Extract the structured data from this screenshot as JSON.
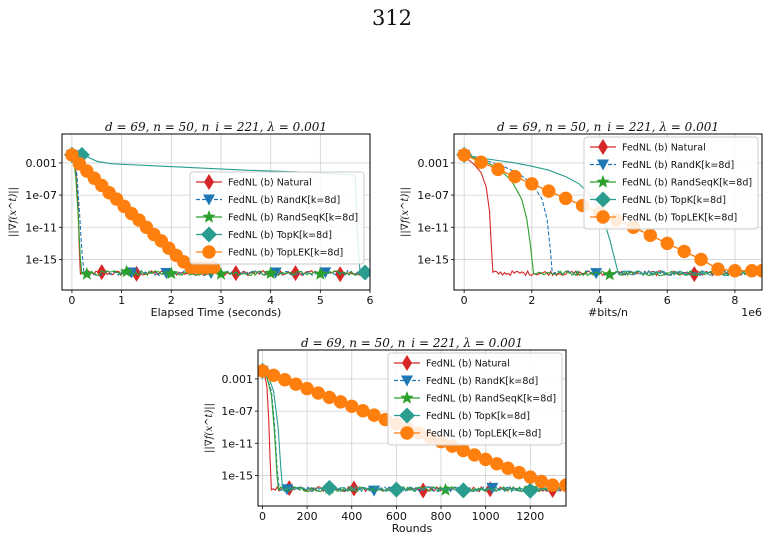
{
  "page": {
    "number": "312"
  },
  "series_styles": [
    {
      "name": "FedNL (b) Natural",
      "color": "#d62728",
      "marker": "diamond",
      "dash": "solid"
    },
    {
      "name": "FedNL (b) RandK[k=8d]",
      "color": "#1f77b4",
      "marker": "triangle-down",
      "dash": "dashed"
    },
    {
      "name": "FedNL (b) RandSeqK[k=8d]",
      "color": "#2ca02c",
      "marker": "star",
      "dash": "solid"
    },
    {
      "name": "FedNL (b) TopK[k=8d]",
      "color": "#2a9d8f",
      "marker": "diamond-large",
      "dash": "solid"
    },
    {
      "name": "FedNL (b) TopLEK[k=8d]",
      "color": "#ff7f0e",
      "marker": "circle",
      "dash": "solid"
    }
  ],
  "chart_data": [
    {
      "id": "time",
      "type": "line",
      "title": "d = 69, n = 50, n_i = 221, λ = 0.001",
      "xlabel": "Elapsed Time (seconds)",
      "ylabel": "||∇f(x^t)||",
      "y_scale": "log",
      "xlim": [
        -0.2,
        6.0
      ],
      "ylim_log10": [
        -18.8,
        0.6
      ],
      "xticks": [
        0,
        1,
        2,
        3,
        4,
        5,
        6
      ],
      "xtick_labels": [
        "0",
        "1",
        "2",
        "3",
        "4",
        "5",
        "6"
      ],
      "x_multiplier_label": "",
      "yticks_log10": [
        -3,
        -7,
        -11,
        -15
      ],
      "ytick_labels": [
        "0.001",
        "1e-07",
        "1e-11",
        "1e-15"
      ],
      "grid": true,
      "legend_position": "center-right",
      "noise_floor_log10": [
        -17.0,
        -16.4
      ],
      "series": [
        {
          "name": "FedNL (b) Natural",
          "x": [
            0,
            0.04,
            0.08,
            0.12,
            0.15,
            0.17
          ],
          "y_log10": [
            -2,
            -2.5,
            -4,
            -8,
            -14,
            -16.8
          ],
          "floor_to": 6.0,
          "markers_x": [
            0.6,
            1.3,
            3.3,
            4.5,
            5.4
          ]
        },
        {
          "name": "FedNL (b) RandK[k=8d]",
          "x": [
            0,
            0.05,
            0.1,
            0.15,
            0.2,
            0.24
          ],
          "y_log10": [
            -2,
            -2.6,
            -4.5,
            -9,
            -14,
            -16.6
          ],
          "floor_to": 6.0,
          "markers_x": [
            1.2,
            1.9,
            2.8,
            4.1,
            5.1
          ]
        },
        {
          "name": "FedNL (b) RandSeqK[k=8d]",
          "x": [
            0,
            0.04,
            0.08,
            0.13,
            0.17,
            0.2
          ],
          "y_log10": [
            -2,
            -2.6,
            -5,
            -10,
            -15,
            -16.8
          ],
          "floor_to": 6.0,
          "markers_x": [
            0.3,
            1.1,
            2.0,
            3.0,
            4.0,
            5.0
          ]
        },
        {
          "name": "FedNL (b) TopK[k=8d]",
          "x": [
            0,
            0.1,
            0.2,
            0.3,
            0.5,
            0.8,
            1.5,
            2.5,
            3.5,
            4.5,
            5.2,
            5.7,
            5.75,
            5.8
          ],
          "y_log10": [
            -2,
            -2,
            -1.9,
            -2.2,
            -2.8,
            -3.1,
            -3.3,
            -3.6,
            -3.9,
            -4.1,
            -4.3,
            -4.5,
            -12,
            -16.7
          ],
          "floor_to": 6.0,
          "markers_x": [
            0.0,
            0.2,
            5.9
          ]
        },
        {
          "name": "FedNL (b) TopLEK[k=8d]",
          "x": [
            0,
            0.15,
            0.3,
            0.45,
            0.6,
            0.75,
            0.9,
            1.05,
            1.2,
            1.35,
            1.5,
            1.65,
            1.8,
            1.95,
            2.1,
            2.25,
            2.4,
            2.55,
            2.7,
            2.85
          ],
          "y_log10": [
            -2,
            -3.1,
            -4,
            -4.9,
            -5.8,
            -6.7,
            -7.5,
            -8.4,
            -9.3,
            -10.1,
            -11,
            -11.9,
            -12.7,
            -13.6,
            -14.5,
            -15.3,
            -16,
            -16,
            -16,
            -16
          ],
          "floor_to": 2.85,
          "markers_x": []
        }
      ]
    },
    {
      "id": "bits",
      "type": "line",
      "title": "d = 69, n = 50, n_i = 221, λ = 0.001",
      "xlabel": "#bits/n",
      "ylabel": "||∇f(x^t)||",
      "y_scale": "log",
      "xlim": [
        -0.3,
        8.8
      ],
      "ylim_log10": [
        -18.8,
        0.6
      ],
      "xticks": [
        0,
        2,
        4,
        6,
        8
      ],
      "xtick_labels": [
        "0",
        "2",
        "4",
        "6",
        "8"
      ],
      "x_multiplier_label": "1e6",
      "yticks_log10": [
        -3,
        -7,
        -11,
        -15
      ],
      "ytick_labels": [
        "0.001",
        "1e-07",
        "1e-11",
        "1e-15"
      ],
      "grid": true,
      "legend_position": "top-right",
      "noise_floor_log10": [
        -17.0,
        -16.4
      ],
      "series": [
        {
          "name": "FedNL (b) Natural",
          "x": [
            0,
            0.1,
            0.3,
            0.5,
            0.65,
            0.75,
            0.8,
            0.85
          ],
          "y_log10": [
            -2,
            -2.5,
            -3.2,
            -4.2,
            -6,
            -9,
            -13,
            -16.6
          ],
          "floor_to": 8.8,
          "markers_x": [
            0.0,
            6.8
          ]
        },
        {
          "name": "FedNL (b) RandK[k=8d]",
          "x": [
            0,
            0.4,
            0.8,
            1.2,
            1.6,
            2.0,
            2.3,
            2.45,
            2.55,
            2.6
          ],
          "y_log10": [
            -2,
            -2.4,
            -2.9,
            -3.5,
            -4.3,
            -5.5,
            -7.5,
            -10,
            -14,
            -16.6
          ],
          "floor_to": 8.8,
          "markers_x": [
            0.0,
            3.9
          ]
        },
        {
          "name": "FedNL (b) RandSeqK[k=8d]",
          "x": [
            0,
            0.4,
            0.8,
            1.1,
            1.4,
            1.7,
            1.85,
            1.95,
            2.05
          ],
          "y_log10": [
            -2,
            -2.5,
            -3.2,
            -4,
            -5.2,
            -7.5,
            -10,
            -13,
            -16.7
          ],
          "floor_to": 8.8,
          "markers_x": [
            0.0,
            4.3
          ]
        },
        {
          "name": "FedNL (b) TopK[k=8d]",
          "x": [
            0,
            0.5,
            1,
            1.5,
            2,
            2.5,
            3,
            3.4,
            3.8,
            4.1,
            4.3,
            4.45,
            4.55
          ],
          "y_log10": [
            -2,
            -2.4,
            -2.7,
            -3,
            -3.4,
            -3.9,
            -4.7,
            -5.6,
            -7.3,
            -9.8,
            -12.5,
            -15,
            -16.7
          ],
          "floor_to": 8.8,
          "markers_x": [
            0.0
          ]
        },
        {
          "name": "FedNL (b) TopLEK[k=8d]",
          "x": [
            0,
            0.5,
            1,
            1.5,
            2,
            2.5,
            3,
            3.5,
            4,
            4.5,
            5,
            5.5,
            6,
            6.5,
            7,
            7.5,
            8,
            8.5,
            8.8
          ],
          "y_log10": [
            -2,
            -2.9,
            -3.8,
            -4.7,
            -5.6,
            -6.5,
            -7.4,
            -8.3,
            -9.2,
            -10.1,
            -11,
            -12,
            -13,
            -14,
            -15,
            -16.2,
            -16.4,
            -16.4,
            -16.4
          ],
          "floor_to": 8.8,
          "markers_x": []
        }
      ]
    },
    {
      "id": "rounds",
      "type": "line",
      "title": "d = 69, n = 50, n_i = 221, λ = 0.001",
      "xlabel": "Rounds",
      "ylabel": "||∇f(x^t)||",
      "y_scale": "log",
      "xlim": [
        -20,
        1360
      ],
      "ylim_log10": [
        -18.8,
        0.6
      ],
      "xticks": [
        0,
        200,
        400,
        600,
        800,
        1000,
        1200
      ],
      "xtick_labels": [
        "0",
        "200",
        "400",
        "600",
        "800",
        "1000",
        "1200"
      ],
      "x_multiplier_label": "",
      "yticks_log10": [
        -3,
        -7,
        -11,
        -15
      ],
      "ytick_labels": [
        "0.001",
        "1e-07",
        "1e-11",
        "1e-15"
      ],
      "grid": true,
      "legend_position": "top-right",
      "noise_floor_log10": [
        -17.0,
        -16.4
      ],
      "series": [
        {
          "name": "FedNL (b) Natural",
          "x": [
            0,
            10,
            20,
            28,
            34,
            40
          ],
          "y_log10": [
            -2,
            -2.5,
            -4,
            -8,
            -13,
            -16.8
          ],
          "floor_to": 1360,
          "markers_x": [
            120,
            410,
            720,
            1020,
            1300
          ]
        },
        {
          "name": "FedNL (b) RandK[k=8d]",
          "x": [
            0,
            20,
            40,
            55,
            65,
            75
          ],
          "y_log10": [
            -2,
            -2.8,
            -4.5,
            -9,
            -14,
            -16.7
          ],
          "floor_to": 1360,
          "markers_x": [
            110,
            500,
            1030
          ]
        },
        {
          "name": "FedNL (b) RandSeqK[k=8d]",
          "x": [
            0,
            20,
            40,
            55,
            65,
            72
          ],
          "y_log10": [
            -2,
            -2.8,
            -5,
            -10,
            -15,
            -16.8
          ],
          "floor_to": 1360,
          "markers_x": [
            300,
            820,
            1200
          ]
        },
        {
          "name": "FedNL (b) TopK[k=8d]",
          "x": [
            0,
            25,
            50,
            70,
            82,
            90
          ],
          "y_log10": [
            -2,
            -2.6,
            -4.5,
            -9,
            -14,
            -16.7
          ],
          "floor_to": 1360,
          "markers_x": [
            0,
            300,
            600,
            900,
            1200
          ]
        },
        {
          "name": "FedNL (b) TopLEK[k=8d]",
          "x": [
            0,
            50,
            100,
            150,
            200,
            250,
            300,
            350,
            400,
            450,
            500,
            550,
            600,
            650,
            700,
            750,
            800,
            850,
            900,
            950,
            1000,
            1050,
            1100,
            1150,
            1200,
            1250,
            1300,
            1360
          ],
          "y_log10": [
            -2,
            -2.55,
            -3.1,
            -3.65,
            -4.2,
            -4.75,
            -5.3,
            -5.85,
            -6.4,
            -6.95,
            -7.5,
            -8.05,
            -8.6,
            -9.15,
            -9.7,
            -10.25,
            -10.8,
            -11.35,
            -11.9,
            -12.45,
            -13,
            -13.55,
            -14.1,
            -14.65,
            -15.2,
            -15.75,
            -16.2,
            -16.2
          ],
          "floor_to": 1360,
          "markers_x": []
        }
      ]
    }
  ]
}
